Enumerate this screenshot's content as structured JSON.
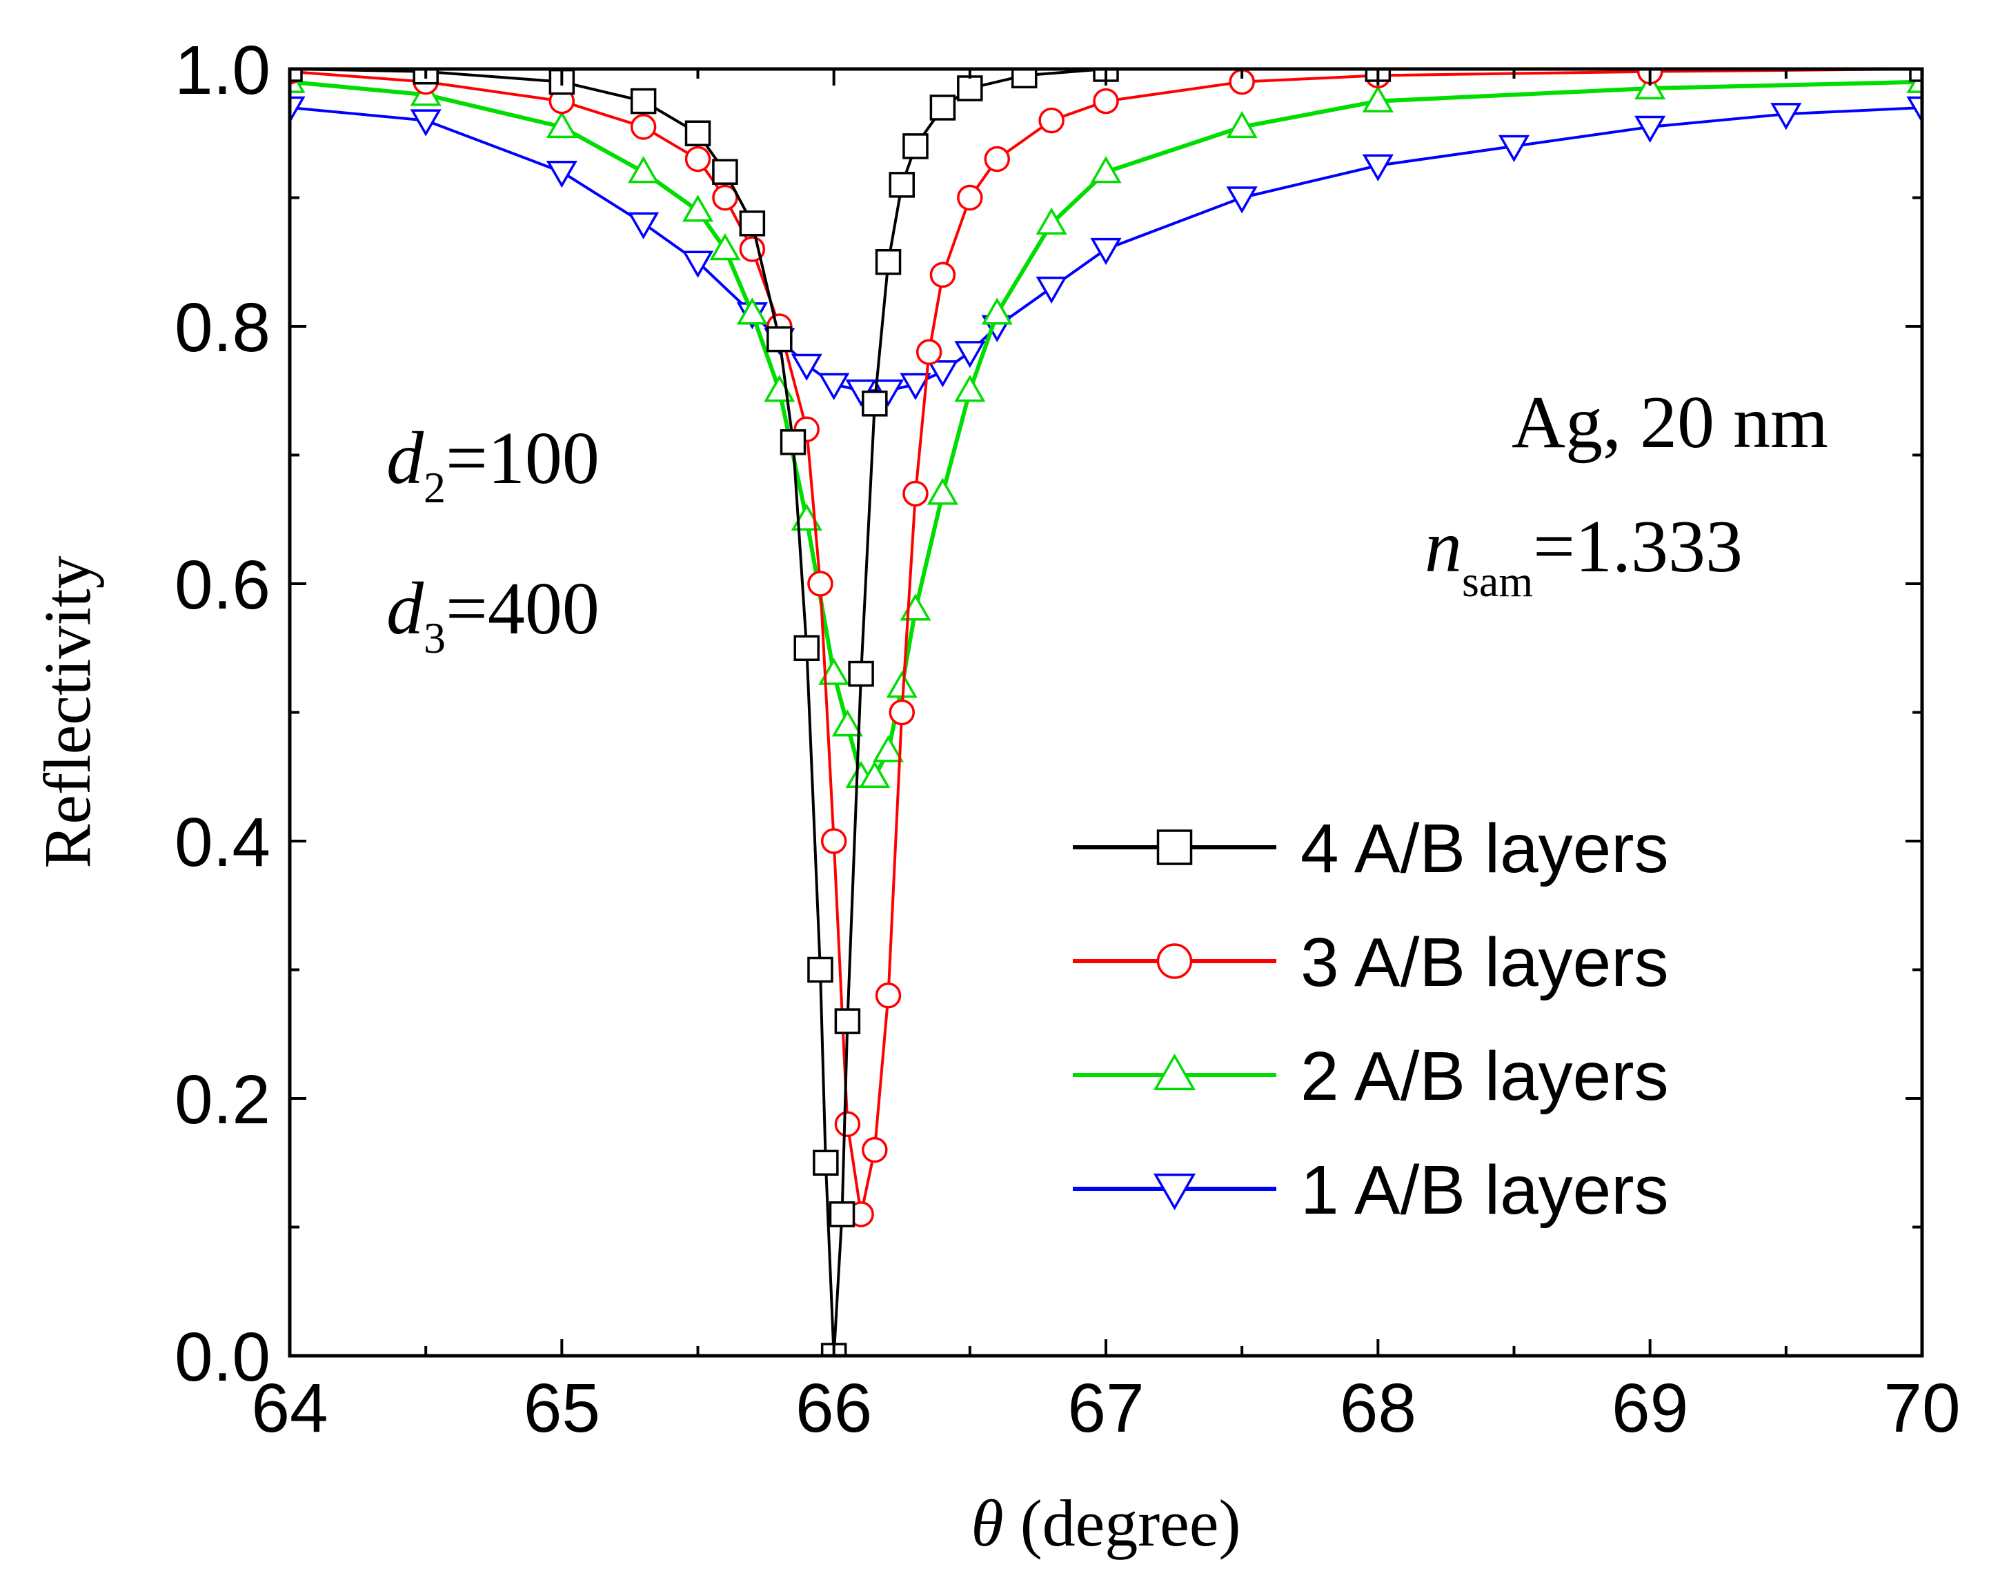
{
  "chart_data": {
    "type": "line",
    "xlabel": {
      "symbol": "θ",
      "text": " (degree)"
    },
    "ylabel": "Reflectivity",
    "xlim": [
      64,
      70
    ],
    "ylim": [
      0,
      1.0
    ],
    "x_ticks": [
      64,
      65,
      66,
      67,
      68,
      69,
      70
    ],
    "x_tick_labels": [
      "64",
      "65",
      "66",
      "67",
      "68",
      "69",
      "70"
    ],
    "y_ticks": [
      0,
      0.2,
      0.4,
      0.6,
      0.8,
      1.0
    ],
    "y_tick_labels": [
      "0.0",
      "0.2",
      "0.4",
      "0.6",
      "0.8",
      "1.0"
    ],
    "grid": false,
    "legend_position": "bottom-right",
    "annotations": {
      "d2": {
        "symbol": "d",
        "sub": "2",
        "value": "=100"
      },
      "d3": {
        "symbol": "d",
        "sub": "3",
        "value": "=400"
      },
      "metal": "Ag, 20 nm",
      "nsam": {
        "symbol": "n",
        "sub": "sam",
        "value": "=1.333"
      }
    },
    "series": [
      {
        "name": "4 A/B layers",
        "color": "#000000",
        "marker": "square",
        "x": [
          64.0,
          64.5,
          65.0,
          65.3,
          65.5,
          65.6,
          65.7,
          65.8,
          65.85,
          65.9,
          65.95,
          65.97,
          66.0,
          66.03,
          66.05,
          66.1,
          66.15,
          66.2,
          66.25,
          66.3,
          66.4,
          66.5,
          66.7,
          67.0,
          68.0,
          70.0
        ],
        "values": [
          1.0,
          0.998,
          0.99,
          0.975,
          0.95,
          0.92,
          0.88,
          0.79,
          0.71,
          0.55,
          0.3,
          0.15,
          0.0,
          0.11,
          0.26,
          0.53,
          0.74,
          0.85,
          0.91,
          0.94,
          0.97,
          0.985,
          0.995,
          1.0,
          1.0,
          1.0
        ]
      },
      {
        "name": "3 A/B layers",
        "color": "#ff0000",
        "marker": "circle",
        "x": [
          64.0,
          64.5,
          65.0,
          65.3,
          65.5,
          65.6,
          65.7,
          65.8,
          65.9,
          65.95,
          66.0,
          66.05,
          66.1,
          66.15,
          66.2,
          66.25,
          66.3,
          66.35,
          66.4,
          66.5,
          66.6,
          66.8,
          67.0,
          67.5,
          68.0,
          69.0,
          70.0
        ],
        "values": [
          0.998,
          0.99,
          0.975,
          0.955,
          0.93,
          0.9,
          0.86,
          0.8,
          0.72,
          0.6,
          0.4,
          0.18,
          0.11,
          0.16,
          0.28,
          0.5,
          0.67,
          0.78,
          0.84,
          0.9,
          0.93,
          0.96,
          0.975,
          0.99,
          0.995,
          0.998,
          1.0
        ]
      },
      {
        "name": "2 A/B layers",
        "color": "#00dd00",
        "marker": "triangle-up",
        "x": [
          64.0,
          64.5,
          65.0,
          65.3,
          65.5,
          65.6,
          65.7,
          65.8,
          65.9,
          66.0,
          66.05,
          66.1,
          66.15,
          66.2,
          66.25,
          66.3,
          66.4,
          66.5,
          66.6,
          66.8,
          67.0,
          67.5,
          68.0,
          69.0,
          70.0
        ],
        "values": [
          0.99,
          0.98,
          0.955,
          0.92,
          0.89,
          0.86,
          0.81,
          0.75,
          0.65,
          0.53,
          0.49,
          0.45,
          0.45,
          0.47,
          0.52,
          0.58,
          0.67,
          0.75,
          0.81,
          0.88,
          0.92,
          0.955,
          0.975,
          0.985,
          0.99
        ]
      },
      {
        "name": "1 A/B layers",
        "color": "#0000ff",
        "marker": "triangle-down",
        "x": [
          64.0,
          64.5,
          65.0,
          65.3,
          65.5,
          65.7,
          65.8,
          65.9,
          66.0,
          66.1,
          66.2,
          66.3,
          66.4,
          66.5,
          66.6,
          66.8,
          67.0,
          67.5,
          68.0,
          68.5,
          69.0,
          69.5,
          70.0
        ],
        "values": [
          0.97,
          0.96,
          0.92,
          0.88,
          0.85,
          0.81,
          0.79,
          0.77,
          0.755,
          0.75,
          0.75,
          0.755,
          0.765,
          0.78,
          0.8,
          0.83,
          0.86,
          0.9,
          0.925,
          0.94,
          0.955,
          0.965,
          0.97
        ]
      }
    ]
  }
}
